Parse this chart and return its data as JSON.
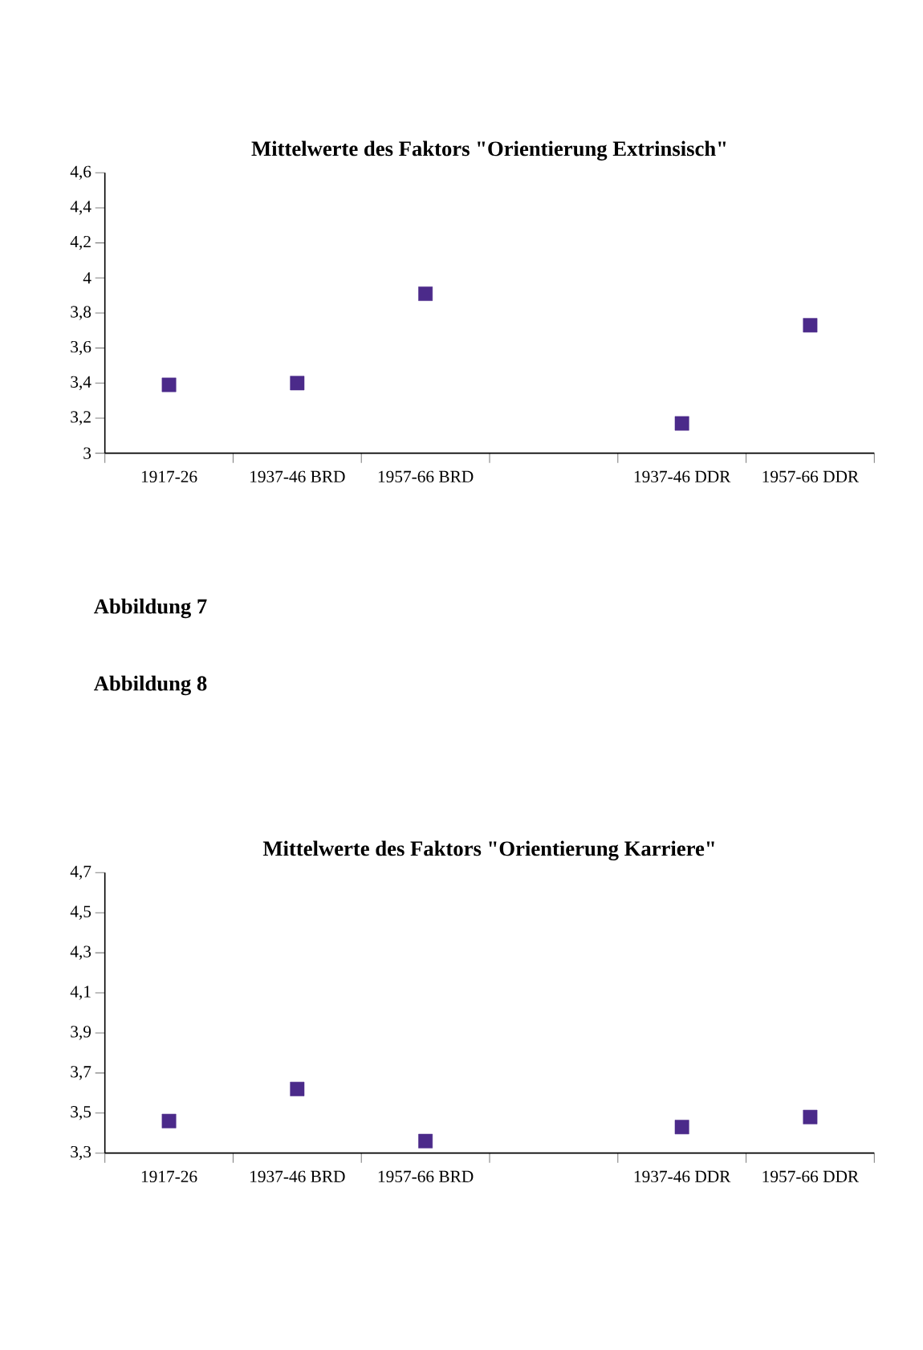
{
  "chart_data": [
    {
      "type": "scatter",
      "title": "Mittelwerte des Faktors \"Orientierung  Extrinsisch\"",
      "categories": [
        "1917-26",
        "1937-46 BRD",
        "1957-66 BRD",
        null,
        "1937-46 DDR",
        "1957-66 DDR"
      ],
      "values": [
        3.39,
        3.4,
        3.91,
        null,
        3.17,
        3.73
      ],
      "color": "#4b2a8a",
      "marker": "square",
      "ylim": [
        3,
        4.6
      ],
      "yticks": [
        3,
        {
          "value": 3.2,
          "label": "3,2"
        },
        {
          "value": 3.4,
          "label": "3,4"
        },
        {
          "value": 3.6,
          "label": "3,6"
        },
        {
          "value": 3.8,
          "label": "3,8"
        },
        4,
        {
          "value": 4.2,
          "label": "4,2"
        },
        {
          "value": 4.4,
          "label": "4,4"
        },
        {
          "value": 4.6,
          "label": "4,6"
        }
      ],
      "annotations": [
        "Abbildung  7"
      ]
    },
    {
      "type": "scatter",
      "title": "Mittelwerte des Faktors \"Orientierung  Karriere\"",
      "categories": [
        "1917-26",
        "1937-46 BRD",
        "1957-66 BRD",
        null,
        "1937-46 DDR",
        "1957-66 DDR"
      ],
      "values": [
        3.46,
        3.62,
        3.36,
        null,
        3.43,
        3.48
      ],
      "color": "#4b2a8a",
      "marker": "square",
      "ylim": [
        3.3,
        4.7
      ],
      "yticks": [
        {
          "value": 3.3,
          "label": "3,3"
        },
        {
          "value": 3.5,
          "label": "3,5"
        },
        {
          "value": 3.7,
          "label": "3,7"
        },
        {
          "value": 3.9,
          "label": "3,9"
        },
        {
          "value": 4.1,
          "label": "4,1"
        },
        {
          "value": 4.3,
          "label": "4,3"
        },
        {
          "value": 4.5,
          "label": "4,5"
        },
        {
          "value": 4.7,
          "label": "4,7"
        }
      ],
      "annotations": [
        "Abbildung  8"
      ]
    }
  ]
}
